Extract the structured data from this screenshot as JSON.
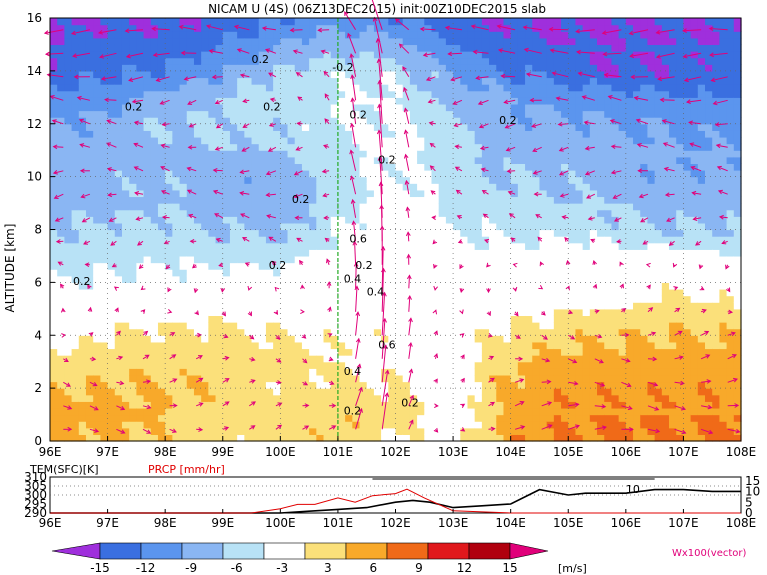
{
  "chart_data": {
    "type": "heatmap",
    "title": "NICAM U (4S) (06Z13DEC2015) init:00Z10DEC2015 slab",
    "ylabel": "ALTITUDE [km]",
    "x_ticks": [
      "96E",
      "97E",
      "98E",
      "99E",
      "100E",
      "101E",
      "102E",
      "103E",
      "104E",
      "105E",
      "106E",
      "107E",
      "108E"
    ],
    "y_ticks": [
      "0",
      "2",
      "4",
      "6",
      "8",
      "10",
      "12",
      "14",
      "16"
    ],
    "xlim": [
      96,
      108
    ],
    "ylim": [
      0,
      16
    ],
    "grid": true,
    "colorbar": {
      "levels": [
        -15,
        -12,
        -9,
        -6,
        -3,
        3,
        6,
        9,
        12,
        15
      ],
      "labels": [
        "-15",
        "-12",
        "-9",
        "-6",
        "-3",
        "3",
        "6",
        "9",
        "12",
        "15"
      ],
      "colors": [
        "#9f2fdc",
        "#3a6fe0",
        "#5b95ee",
        "#8ab6f3",
        "#b8e2f6",
        "#ffffff",
        "#fbe07a",
        "#f8a92a",
        "#f06a18",
        "#e0181c",
        "#b0000e",
        "#e0007a"
      ],
      "unit": "[m/s]"
    },
    "vector_label": "Wx100(vector)",
    "contour_labels": [
      "0.2",
      "0.2",
      "0.2",
      "0.2",
      "-0.2",
      "0.2",
      "0.2",
      "0.2",
      "0.2",
      "0.2",
      "0.2",
      "0.6",
      "0.4",
      "0.4",
      "0.6",
      "0.2",
      "0.4",
      "0.2"
    ],
    "vertical_line_x": 101,
    "u_wind_grid": {
      "x": [
        96,
        97,
        98,
        99,
        100,
        101,
        102,
        103,
        104,
        105,
        106,
        107,
        108
      ],
      "y": [
        0,
        1,
        2,
        3,
        4,
        5,
        6,
        7,
        8,
        9,
        10,
        11,
        12,
        13,
        14,
        15,
        16
      ],
      "values": [
        [
          6,
          7,
          5,
          4,
          4,
          5,
          3,
          1,
          8,
          9,
          10,
          9,
          11
        ],
        [
          7,
          7,
          6,
          5,
          5,
          6,
          5,
          1,
          7,
          9,
          9,
          9,
          9
        ],
        [
          6,
          6,
          6,
          5,
          4,
          4,
          3,
          1,
          7,
          8,
          8,
          8,
          8
        ],
        [
          4,
          5,
          5,
          5,
          4,
          3,
          2,
          1,
          6,
          7,
          7,
          7,
          7
        ],
        [
          1,
          3,
          4,
          4,
          3,
          2,
          2,
          1,
          4,
          5,
          6,
          6,
          6
        ],
        [
          -1,
          1,
          1,
          2,
          1,
          1,
          1,
          0,
          2,
          3,
          3,
          4,
          3
        ],
        [
          -3,
          -2,
          -2,
          -1,
          -1,
          0,
          1,
          -1,
          0,
          0,
          1,
          2,
          1
        ],
        [
          -5,
          -4,
          -3,
          -4,
          -4,
          -2,
          0,
          -2,
          -2,
          -1,
          -2,
          -2,
          -3
        ],
        [
          -6,
          -5,
          -5,
          -6,
          -7,
          -3,
          0,
          -3,
          -4,
          -4,
          -5,
          -6,
          -6
        ],
        [
          -7,
          -7,
          -6,
          -7,
          -8,
          -4,
          -1,
          -4,
          -5,
          -6,
          -6,
          -7,
          -7
        ],
        [
          -8,
          -7,
          -7,
          -8,
          -8,
          -5,
          -2,
          -5,
          -6,
          -7,
          -8,
          -8,
          -8
        ],
        [
          -8,
          -8,
          -7,
          -6,
          -6,
          -4,
          -2,
          -5,
          -7,
          -7,
          -8,
          -9,
          -9
        ],
        [
          -9,
          -8,
          -6,
          -5,
          -5,
          -3,
          -2,
          -6,
          -8,
          -8,
          -9,
          -10,
          -10
        ],
        [
          -11,
          -10,
          -8,
          -6,
          -4,
          -3,
          -3,
          -7,
          -9,
          -10,
          -11,
          -12,
          -12
        ],
        [
          -14,
          -13,
          -12,
          -9,
          -6,
          -4,
          -4,
          -9,
          -12,
          -14,
          -15,
          -14,
          -14
        ],
        [
          -15,
          -14,
          -14,
          -12,
          -9,
          -7,
          -8,
          -12,
          -14,
          -15,
          -15,
          -15,
          -15
        ],
        [
          -16,
          -15,
          -15,
          -14,
          -12,
          -10,
          -12,
          -14,
          -15,
          -16,
          -16,
          -15,
          -15
        ]
      ]
    },
    "bottom_panel": {
      "label_tem": "TEM(SFC)[K]",
      "label_prcp": "PRCP [mm/hr]",
      "left_ticks": [
        "310",
        "305",
        "300",
        "295",
        "290"
      ],
      "right_ticks": [
        "15",
        "10",
        "5",
        "0"
      ],
      "x_ticks": [
        "96E",
        "97E",
        "98E",
        "99E",
        "100E",
        "101E",
        "102E",
        "103E",
        "104E",
        "105E",
        "106E",
        "107E",
        "108E"
      ],
      "line_label": "10",
      "tem_series": {
        "name": "TEM(SFC)",
        "x": [
          96,
          96.5,
          97,
          98,
          99,
          99.5,
          100,
          100.5,
          101,
          101.5,
          102,
          102.3,
          102.6,
          103,
          103.5,
          104,
          104.5,
          105,
          105.3,
          105.6,
          106,
          106.5,
          107,
          107.5,
          108
        ],
        "values": [
          290,
          290,
          290,
          290,
          290,
          290,
          290,
          291,
          292,
          293,
          296,
          297,
          296,
          293,
          294,
          295,
          303,
          300,
          301,
          301,
          301,
          303,
          303,
          302,
          302
        ]
      },
      "prcp_series": {
        "name": "PRCP",
        "x": [
          96,
          97,
          98,
          99,
          99.5,
          100,
          100.3,
          100.6,
          101,
          101.3,
          101.6,
          102,
          102.2,
          102.5,
          103,
          104,
          105,
          106,
          107,
          108
        ],
        "values": [
          0,
          0,
          0,
          0,
          0,
          2,
          4,
          4,
          7,
          5,
          8,
          9,
          11,
          7,
          1,
          0,
          0,
          0,
          0,
          0
        ]
      }
    }
  }
}
